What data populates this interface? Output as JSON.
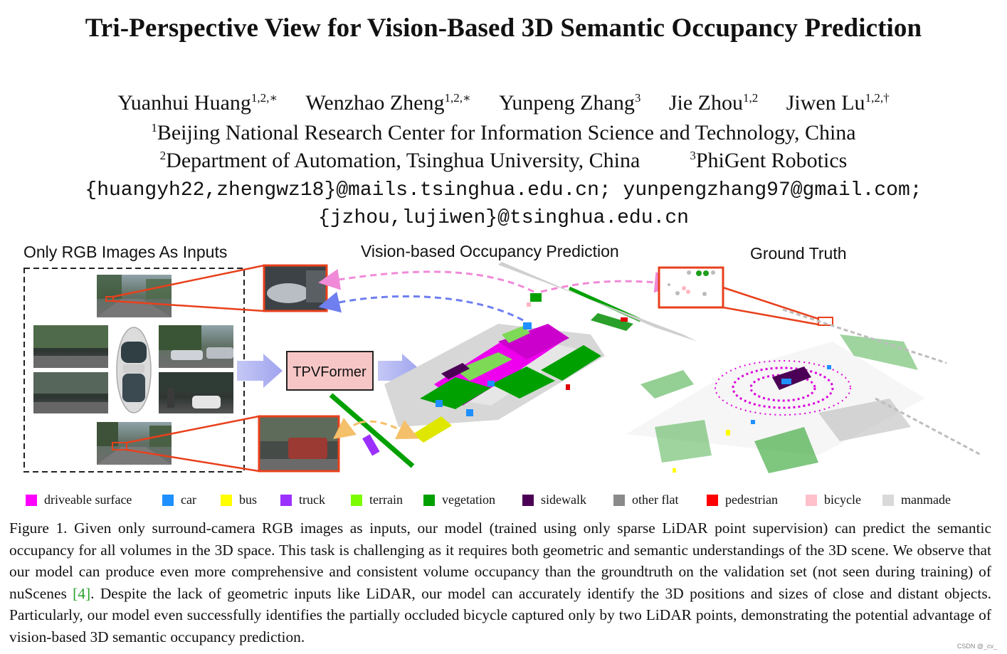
{
  "title": "Tri-Perspective View for Vision-Based 3D Semantic Occupancy Prediction",
  "authors": [
    {
      "name": "Yuanhui Huang",
      "sup": "1,2,∗"
    },
    {
      "name": "Wenzhao Zheng",
      "sup": "1,2,∗"
    },
    {
      "name": "Yunpeng Zhang",
      "sup": "3"
    },
    {
      "name": "Jie Zhou",
      "sup": "1,2"
    },
    {
      "name": "Jiwen Lu",
      "sup": "1,2,†"
    }
  ],
  "affiliations": {
    "a1_sup": "1",
    "a1": "Beijing National Research Center for Information Science and Technology, China",
    "a2_sup": "2",
    "a2": "Department of Automation, Tsinghua University, China",
    "a3_sup": "3",
    "a3": "PhiGent Robotics"
  },
  "emails": {
    "line1": "{huangyh22,zhengwz18}@mails.tsinghua.edu.cn; yunpengzhang97@gmail.com;",
    "line2": "{jzhou,lujiwen}@tsinghua.edu.cn"
  },
  "figure": {
    "panel_inputs": "Only RGB Images As Inputs",
    "panel_prediction": "Vision-based Occupancy Prediction",
    "panel_gt": "Ground Truth",
    "model_box": "TPVFormer"
  },
  "legend": [
    {
      "label": "driveable surface",
      "color": "#ff00ff"
    },
    {
      "label": "car",
      "color": "#1e90ff"
    },
    {
      "label": "bus",
      "color": "#ffff00"
    },
    {
      "label": "truck",
      "color": "#9b30ff"
    },
    {
      "label": "terrain",
      "color": "#7cfc00"
    },
    {
      "label": "vegetation",
      "color": "#00a000"
    },
    {
      "label": "sidewalk",
      "color": "#4b0055"
    },
    {
      "label": "other flat",
      "color": "#8a8a8a"
    },
    {
      "label": "pedestrian",
      "color": "#ff0000"
    },
    {
      "label": "bicycle",
      "color": "#ffc0cb"
    },
    {
      "label": "manmade",
      "color": "#d9d9d9"
    }
  ],
  "caption": {
    "before_ref": "Figure 1.  Given only surround-camera RGB images as inputs, our model (trained using only sparse LiDAR point supervision) can predict the semantic occupancy for all volumes in the 3D space. This task is challenging as it requires both geometric and semantic understandings of the 3D scene. We observe that our model can produce even more comprehensive and consistent volume occupancy than the groundtruth on the validation set (not seen during training) of nuScenes ",
    "ref": "[4]",
    "after_ref": ". Despite the lack of geometric inputs like LiDAR, our model can accurately identify the 3D positions and sizes of close and distant objects. Particularly, our model even successfully identifies the partially occluded bicycle captured only by two LiDAR points, demonstrating the potential advantage of vision-based 3D semantic occupancy prediction."
  },
  "watermark": "CSDN @_cv_"
}
